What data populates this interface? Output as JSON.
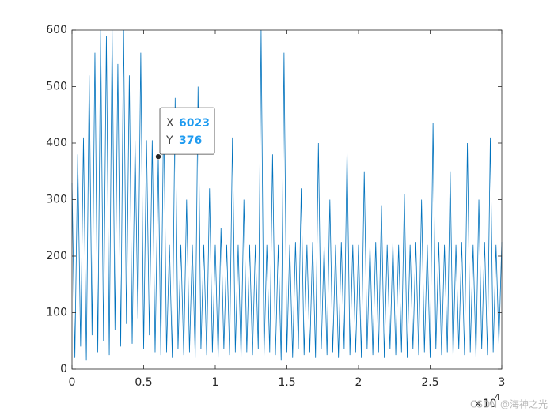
{
  "chart_data": {
    "type": "line",
    "x": [
      0,
      200,
      400,
      600,
      800,
      1000,
      1200,
      1400,
      1600,
      1800,
      2000,
      2200,
      2400,
      2600,
      2800,
      3000,
      3200,
      3400,
      3600,
      3800,
      4000,
      4200,
      4400,
      4600,
      4800,
      5000,
      5200,
      5400,
      5600,
      5800,
      6023,
      6200,
      6400,
      6600,
      6800,
      7000,
      7200,
      7400,
      7600,
      7800,
      8000,
      8200,
      8400,
      8600,
      8800,
      9000,
      9200,
      9400,
      9600,
      9800,
      10000,
      10200,
      10400,
      10600,
      10800,
      11000,
      11200,
      11400,
      11600,
      11800,
      12000,
      12200,
      12400,
      12600,
      12800,
      13000,
      13200,
      13400,
      13600,
      13800,
      14000,
      14200,
      14400,
      14600,
      14800,
      15000,
      15200,
      15400,
      15600,
      15800,
      16000,
      16200,
      16400,
      16600,
      16800,
      17000,
      17200,
      17400,
      17600,
      17800,
      18000,
      18200,
      18400,
      18600,
      18800,
      19000,
      19200,
      19400,
      19600,
      19800,
      20000,
      20200,
      20400,
      20600,
      20800,
      21000,
      21200,
      21400,
      21600,
      21800,
      22000,
      22200,
      22400,
      22600,
      22800,
      23000,
      23200,
      23400,
      23600,
      23800,
      24000,
      24200,
      24400,
      24600,
      24800,
      25000,
      25200,
      25400,
      25600,
      25800,
      26000,
      26200,
      26400,
      26600,
      26800,
      27000,
      27200,
      27400,
      27600,
      27800,
      28000,
      28200,
      28400,
      28600,
      28800,
      29000,
      29200,
      29400,
      29600,
      29800,
      30000
    ],
    "series": [
      {
        "color": "#0072BD",
        "values": [
          330,
          20,
          380,
          40,
          410,
          15,
          520,
          60,
          560,
          30,
          600,
          50,
          590,
          25,
          600,
          70,
          540,
          40,
          600,
          80,
          520,
          45,
          405,
          90,
          560,
          35,
          405,
          60,
          405,
          30,
          376,
          25,
          460,
          30,
          220,
          20,
          480,
          35,
          220,
          25,
          300,
          30,
          220,
          20,
          500,
          35,
          220,
          25,
          320,
          30,
          220,
          20,
          250,
          35,
          220,
          25,
          410,
          30,
          220,
          20,
          300,
          30,
          220,
          25,
          220,
          35,
          600,
          20,
          220,
          30,
          380,
          25,
          220,
          15,
          560,
          30,
          220,
          20,
          225,
          35,
          320,
          25,
          220,
          30,
          225,
          20,
          400,
          35,
          220,
          25,
          300,
          30,
          220,
          20,
          225,
          35,
          390,
          25,
          220,
          30,
          220,
          20,
          350,
          35,
          220,
          25,
          225,
          30,
          290,
          20,
          220,
          35,
          225,
          25,
          220,
          30,
          310,
          20,
          220,
          35,
          225,
          25,
          300,
          30,
          220,
          20,
          435,
          35,
          225,
          25,
          220,
          30,
          350,
          20,
          220,
          35,
          225,
          25,
          400,
          30,
          220,
          20,
          300,
          35,
          225,
          25,
          410,
          30,
          220,
          45,
          225
        ]
      }
    ],
    "xlim": [
      0,
      30000
    ],
    "xticks": [
      {
        "value": 0,
        "label": "0"
      },
      {
        "value": 5000,
        "label": "0.5"
      },
      {
        "value": 10000,
        "label": "1"
      },
      {
        "value": 15000,
        "label": "1.5"
      },
      {
        "value": 20000,
        "label": "2"
      },
      {
        "value": 25000,
        "label": "2.5"
      },
      {
        "value": 30000,
        "label": "3"
      }
    ],
    "x_multiplier": {
      "base": "×10",
      "exponent": "4"
    },
    "ylim": [
      0,
      600
    ],
    "yticks": [
      0,
      100,
      200,
      300,
      400,
      500,
      600
    ],
    "grid": false,
    "datatip": {
      "x_label": "X",
      "x": 6023,
      "y_label": "Y",
      "y": 376
    },
    "watermark": "CSDN @海神之光"
  }
}
